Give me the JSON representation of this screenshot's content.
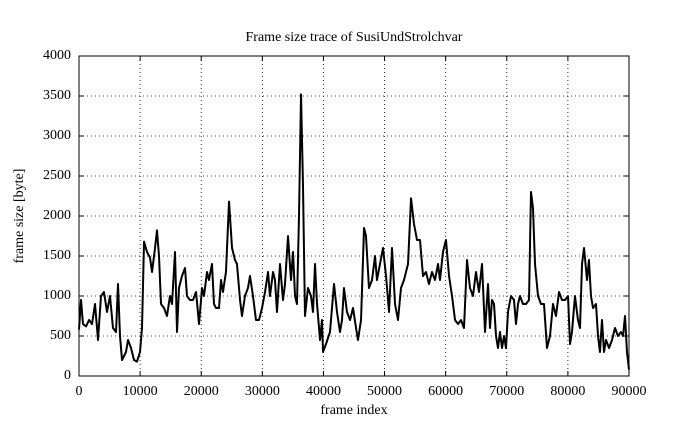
{
  "chart_data": {
    "type": "line",
    "title": "Frame size trace of SusiUndStrolchvar",
    "x_label": "frame index",
    "y_label": "frame size [byte]",
    "color": "#000000",
    "grid": true,
    "xlim": [
      0,
      90000
    ],
    "xticks": [
      0,
      10000,
      20000,
      30000,
      40000,
      50000,
      60000,
      70000,
      80000,
      90000
    ],
    "ylim": [
      0,
      4000
    ],
    "yticks": [
      0,
      500,
      1000,
      1500,
      2000,
      2500,
      3000,
      3500,
      4000
    ],
    "x": [
      0,
      330,
      650,
      1150,
      1640,
      2130,
      2620,
      3110,
      3600,
      4090,
      4580,
      5070,
      5560,
      6060,
      6380,
      6710,
      7040,
      7690,
      8020,
      8510,
      9000,
      9490,
      9980,
      10310,
      10640,
      11130,
      11620,
      11950,
      12440,
      12760,
      13090,
      13420,
      13910,
      14400,
      14890,
      15220,
      15710,
      16040,
      16360,
      16850,
      17350,
      17670,
      18160,
      18650,
      19150,
      19640,
      20130,
      20450,
      20950,
      21270,
      21760,
      22090,
      22420,
      22910,
      23240,
      23560,
      24050,
      24550,
      25040,
      25530,
      25850,
      26350,
      26670,
      27160,
      27650,
      27980,
      28470,
      28960,
      29450,
      29950,
      30440,
      30930,
      31250,
      31750,
      32070,
      32400,
      32890,
      33380,
      33710,
      34200,
      34690,
      35020,
      35350,
      35670,
      36000,
      36330,
      36650,
      36980,
      37470,
      37960,
      38290,
      38620,
      38950,
      39440,
      39760,
      39930,
      40420,
      41070,
      41730,
      42220,
      42710,
      43040,
      43360,
      43850,
      44350,
      44840,
      45330,
      45650,
      46150,
      46640,
      46960,
      47450,
      47950,
      48440,
      48760,
      49250,
      49750,
      50240,
      50730,
      51220,
      51710,
      52200,
      52690,
      53180,
      53510,
      53840,
      54330,
      54820,
      55310,
      55800,
      56290,
      56780,
      57270,
      57760,
      58250,
      58750,
      59070,
      59560,
      60050,
      60550,
      61040,
      61530,
      62020,
      62510,
      63000,
      63490,
      63980,
      64470,
      64960,
      65450,
      65950,
      66440,
      66930,
      67250,
      67580,
      67910,
      68240,
      68560,
      68890,
      69220,
      69550,
      69870,
      70200,
      70690,
      71180,
      71510,
      71840,
      72160,
      72650,
      73150,
      73640,
      73960,
      74290,
      74620,
      75110,
      75600,
      76090,
      76580,
      77070,
      77560,
      78050,
      78550,
      79040,
      79530,
      80020,
      80350,
      80670,
      81160,
      81650,
      81980,
      82310,
      82640,
      83130,
      83450,
      83780,
      84110,
      84600,
      84930,
      85250,
      85580,
      85910,
      86240,
      86730,
      87220,
      87710,
      88200,
      88690,
      89020,
      89350,
      89670,
      90000
    ],
    "values": [
      580,
      950,
      650,
      620,
      700,
      650,
      900,
      450,
      1000,
      1050,
      800,
      1000,
      600,
      550,
      1150,
      500,
      200,
      300,
      450,
      350,
      200,
      180,
      300,
      600,
      1680,
      1550,
      1480,
      1300,
      1600,
      1820,
      1500,
      900,
      850,
      750,
      1000,
      900,
      1550,
      550,
      1100,
      1250,
      1350,
      1000,
      950,
      950,
      1050,
      650,
      1100,
      1000,
      1300,
      1200,
      1400,
      900,
      850,
      850,
      1200,
      1050,
      1300,
      2180,
      1600,
      1450,
      1400,
      950,
      750,
      1000,
      1100,
      1250,
      1000,
      700,
      700,
      850,
      1050,
      1300,
      1000,
      1300,
      1200,
      800,
      1400,
      950,
      1150,
      1750,
      1200,
      1550,
      1000,
      900,
      2000,
      3520,
      2400,
      750,
      1100,
      1000,
      800,
      1400,
      900,
      450,
      700,
      300,
      400,
      550,
      1150,
      800,
      550,
      700,
      1100,
      800,
      700,
      850,
      600,
      450,
      700,
      1850,
      1750,
      1100,
      1200,
      1500,
      1200,
      1400,
      1600,
      1250,
      800,
      1600,
      900,
      700,
      1100,
      1200,
      1300,
      1400,
      2220,
      1900,
      1700,
      1700,
      1250,
      1300,
      1150,
      1300,
      1200,
      1400,
      1200,
      1550,
      1700,
      1250,
      1000,
      700,
      650,
      700,
      600,
      1450,
      1100,
      1000,
      1300,
      1050,
      1400,
      550,
      1150,
      600,
      950,
      900,
      500,
      350,
      550,
      350,
      500,
      350,
      800,
      1000,
      950,
      650,
      900,
      1000,
      900,
      900,
      950,
      2300,
      2100,
      1400,
      1000,
      900,
      900,
      350,
      500,
      900,
      750,
      1050,
      950,
      950,
      1000,
      400,
      550,
      1000,
      700,
      600,
      1400,
      1600,
      1200,
      1450,
      1000,
      850,
      900,
      500,
      300,
      700,
      300,
      450,
      350,
      450,
      600,
      500,
      550,
      500,
      750,
      300,
      80
    ]
  }
}
